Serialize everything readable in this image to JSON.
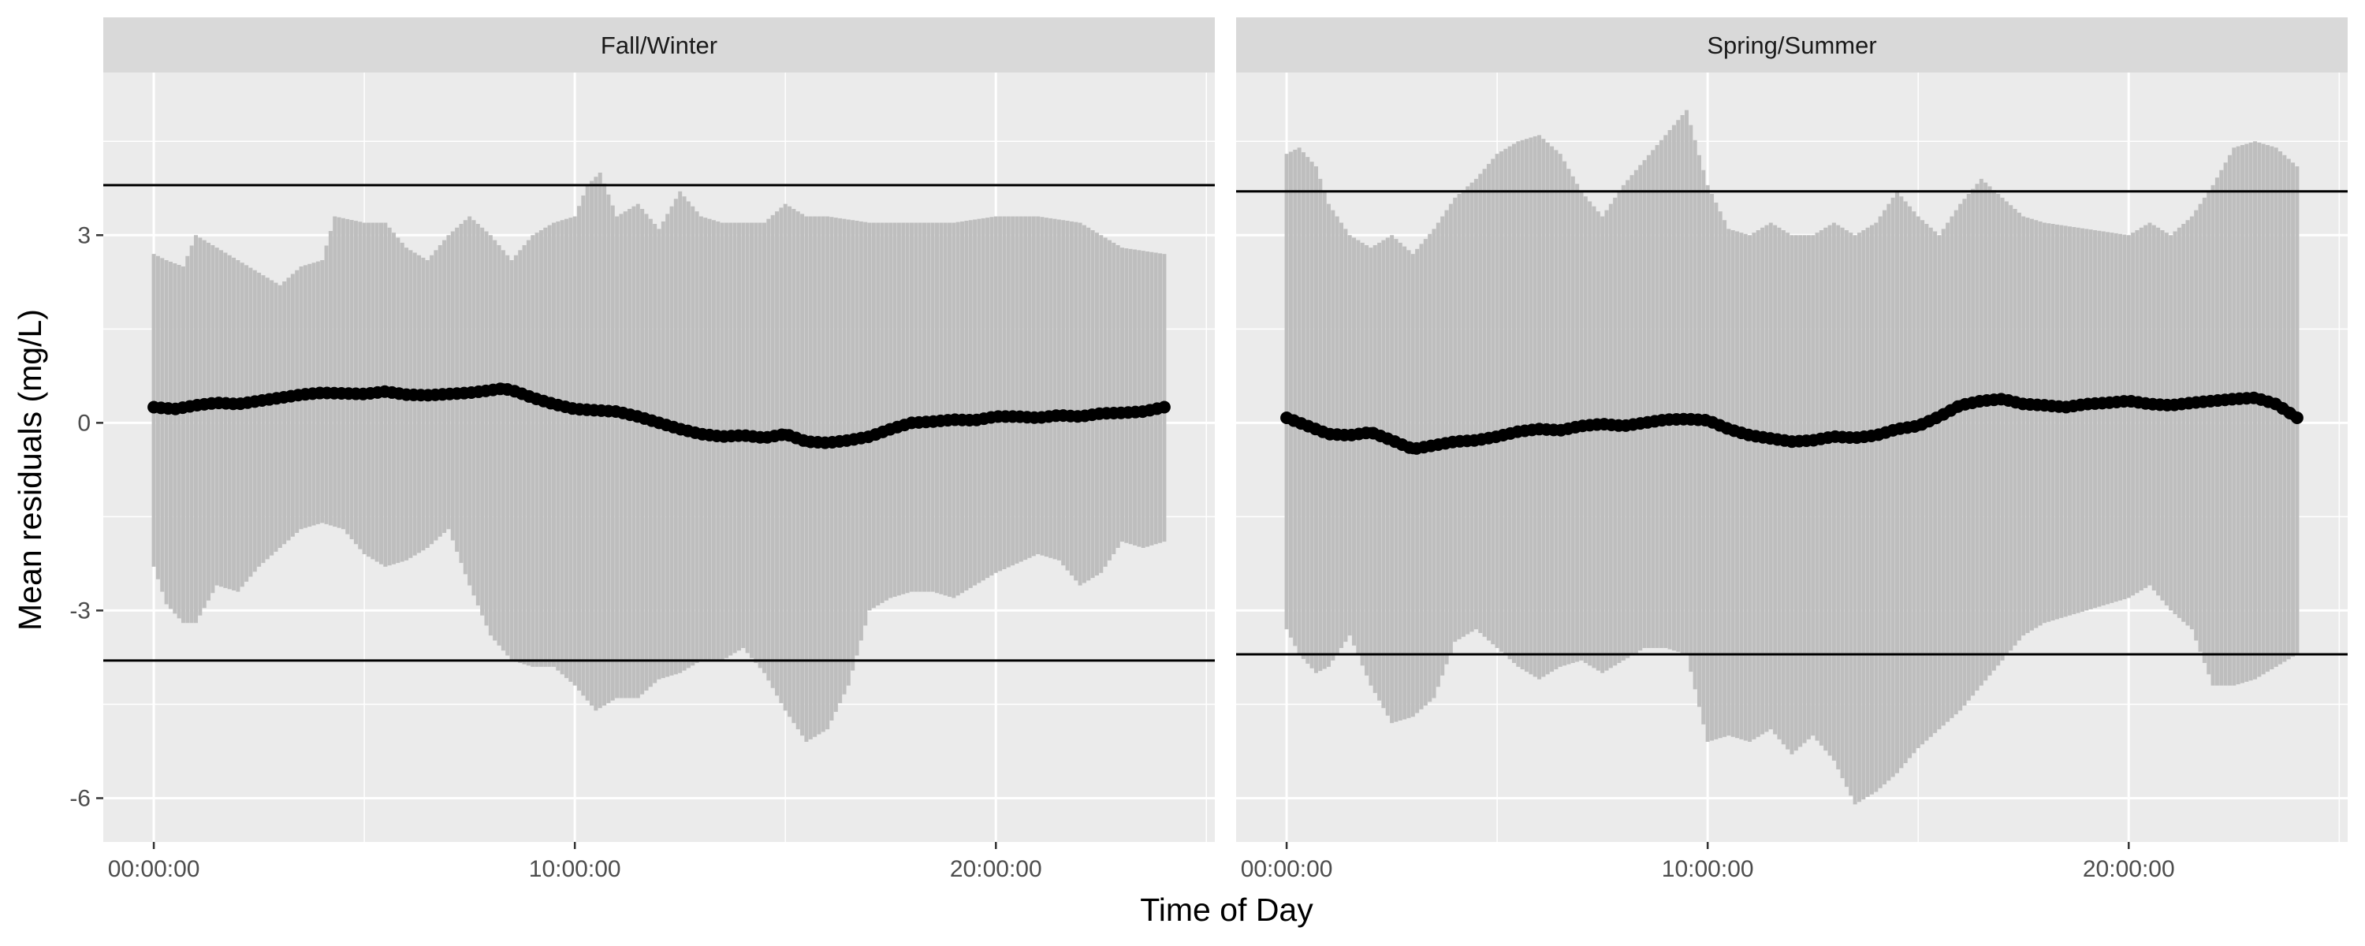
{
  "chart_data": {
    "type": "line",
    "xlabel": "Time of Day",
    "ylabel": "Mean residuals (mg/L)",
    "x_unit": "hours",
    "xlim": [
      -1.2,
      25.2
    ],
    "ylim": [
      -6.7,
      5.6
    ],
    "x_ticks": [
      0,
      10,
      20
    ],
    "x_tick_labels": [
      "00:00:00",
      "10:00:00",
      "20:00:00"
    ],
    "y_ticks": [
      -6,
      -3,
      0,
      3
    ],
    "y_tick_labels": [
      "-6",
      "-3",
      "0",
      "3"
    ],
    "grid": true,
    "legend": "none",
    "colors": {
      "panel_bg": "#ebebeb",
      "strip_bg": "#d9d9d9",
      "grid": "#ffffff",
      "band": "#bebebe",
      "line": "#000000"
    },
    "panels": [
      {
        "title": "Fall/Winter",
        "reference_lines": [
          3.8,
          -3.8
        ],
        "band_upper": [
          [
            0,
            2.7
          ],
          [
            0.3,
            2.6
          ],
          [
            0.7,
            2.5
          ],
          [
            1,
            3.0
          ],
          [
            1.5,
            2.8
          ],
          [
            2,
            2.6
          ],
          [
            2.5,
            2.4
          ],
          [
            3,
            2.2
          ],
          [
            3.5,
            2.5
          ],
          [
            4,
            2.6
          ],
          [
            4.3,
            3.3
          ],
          [
            5,
            3.2
          ],
          [
            5.5,
            3.2
          ],
          [
            6,
            2.8
          ],
          [
            6.5,
            2.6
          ],
          [
            7,
            3.0
          ],
          [
            7.5,
            3.3
          ],
          [
            8,
            3.0
          ],
          [
            8.5,
            2.6
          ],
          [
            9,
            3.0
          ],
          [
            9.5,
            3.2
          ],
          [
            10,
            3.3
          ],
          [
            10.3,
            3.8
          ],
          [
            10.6,
            4.0
          ],
          [
            11,
            3.3
          ],
          [
            11.5,
            3.5
          ],
          [
            12,
            3.1
          ],
          [
            12.5,
            3.7
          ],
          [
            13,
            3.3
          ],
          [
            13.5,
            3.2
          ],
          [
            14,
            3.2
          ],
          [
            14.5,
            3.2
          ],
          [
            15,
            3.5
          ],
          [
            15.5,
            3.3
          ],
          [
            16,
            3.3
          ],
          [
            17,
            3.2
          ],
          [
            18,
            3.2
          ],
          [
            19,
            3.2
          ],
          [
            20,
            3.3
          ],
          [
            21,
            3.3
          ],
          [
            22,
            3.2
          ],
          [
            23,
            2.8
          ],
          [
            24,
            2.7
          ]
        ],
        "band_lower": [
          [
            0,
            -2.3
          ],
          [
            0.3,
            -2.9
          ],
          [
            0.7,
            -3.2
          ],
          [
            1,
            -3.2
          ],
          [
            1.5,
            -2.6
          ],
          [
            2,
            -2.7
          ],
          [
            2.5,
            -2.3
          ],
          [
            3,
            -2.0
          ],
          [
            3.5,
            -1.7
          ],
          [
            4,
            -1.6
          ],
          [
            4.5,
            -1.7
          ],
          [
            5,
            -2.1
          ],
          [
            5.5,
            -2.3
          ],
          [
            6,
            -2.2
          ],
          [
            6.5,
            -2.0
          ],
          [
            7,
            -1.7
          ],
          [
            7.5,
            -2.6
          ],
          [
            8,
            -3.4
          ],
          [
            8.5,
            -3.8
          ],
          [
            9,
            -3.9
          ],
          [
            9.5,
            -3.9
          ],
          [
            10,
            -4.2
          ],
          [
            10.5,
            -4.6
          ],
          [
            11,
            -4.4
          ],
          [
            11.5,
            -4.4
          ],
          [
            12,
            -4.1
          ],
          [
            12.5,
            -4.0
          ],
          [
            13,
            -3.8
          ],
          [
            13.5,
            -3.8
          ],
          [
            14,
            -3.6
          ],
          [
            14.5,
            -4.0
          ],
          [
            15,
            -4.6
          ],
          [
            15.5,
            -5.1
          ],
          [
            16,
            -4.9
          ],
          [
            16.5,
            -4.2
          ],
          [
            17,
            -3.0
          ],
          [
            17.5,
            -2.8
          ],
          [
            18,
            -2.7
          ],
          [
            18.5,
            -2.7
          ],
          [
            19,
            -2.8
          ],
          [
            19.5,
            -2.6
          ],
          [
            20,
            -2.4
          ],
          [
            21,
            -2.1
          ],
          [
            21.5,
            -2.2
          ],
          [
            22,
            -2.6
          ],
          [
            22.5,
            -2.4
          ],
          [
            23,
            -1.9
          ],
          [
            23.5,
            -2.0
          ],
          [
            24,
            -1.9
          ]
        ],
        "mean_line": [
          [
            0,
            0.25
          ],
          [
            0.5,
            0.22
          ],
          [
            1,
            0.28
          ],
          [
            1.5,
            0.32
          ],
          [
            2,
            0.3
          ],
          [
            2.5,
            0.35
          ],
          [
            3,
            0.4
          ],
          [
            3.5,
            0.45
          ],
          [
            4,
            0.48
          ],
          [
            4.5,
            0.47
          ],
          [
            5,
            0.46
          ],
          [
            5.5,
            0.5
          ],
          [
            6,
            0.45
          ],
          [
            6.5,
            0.44
          ],
          [
            7,
            0.46
          ],
          [
            7.5,
            0.48
          ],
          [
            8,
            0.52
          ],
          [
            8.3,
            0.55
          ],
          [
            8.6,
            0.5
          ],
          [
            9,
            0.4
          ],
          [
            9.5,
            0.3
          ],
          [
            10,
            0.22
          ],
          [
            10.5,
            0.2
          ],
          [
            11,
            0.18
          ],
          [
            11.5,
            0.1
          ],
          [
            12,
            0.0
          ],
          [
            12.5,
            -0.1
          ],
          [
            13,
            -0.18
          ],
          [
            13.5,
            -0.22
          ],
          [
            14,
            -0.2
          ],
          [
            14.5,
            -0.24
          ],
          [
            15,
            -0.18
          ],
          [
            15.5,
            -0.3
          ],
          [
            16,
            -0.32
          ],
          [
            16.5,
            -0.28
          ],
          [
            17,
            -0.22
          ],
          [
            17.5,
            -0.1
          ],
          [
            18,
            0.0
          ],
          [
            18.5,
            0.02
          ],
          [
            19,
            0.05
          ],
          [
            19.5,
            0.04
          ],
          [
            20,
            0.1
          ],
          [
            20.5,
            0.1
          ],
          [
            21,
            0.08
          ],
          [
            21.5,
            0.12
          ],
          [
            22,
            0.1
          ],
          [
            22.5,
            0.15
          ],
          [
            23,
            0.16
          ],
          [
            23.5,
            0.18
          ],
          [
            24,
            0.25
          ]
        ]
      },
      {
        "title": "Spring/Summer",
        "reference_lines": [
          3.7,
          -3.7
        ],
        "band_upper": [
          [
            0,
            4.3
          ],
          [
            0.3,
            4.4
          ],
          [
            0.7,
            4.1
          ],
          [
            1,
            3.5
          ],
          [
            1.5,
            3.0
          ],
          [
            2,
            2.8
          ],
          [
            2.5,
            3.0
          ],
          [
            3,
            2.7
          ],
          [
            3.5,
            3.1
          ],
          [
            4,
            3.6
          ],
          [
            4.5,
            3.9
          ],
          [
            5,
            4.3
          ],
          [
            5.5,
            4.5
          ],
          [
            6,
            4.6
          ],
          [
            6.5,
            4.3
          ],
          [
            7,
            3.7
          ],
          [
            7.5,
            3.3
          ],
          [
            8,
            3.8
          ],
          [
            8.5,
            4.2
          ],
          [
            9,
            4.6
          ],
          [
            9.5,
            5.0
          ],
          [
            10,
            3.8
          ],
          [
            10.5,
            3.1
          ],
          [
            11,
            3.0
          ],
          [
            11.5,
            3.2
          ],
          [
            12,
            3.0
          ],
          [
            12.5,
            3.0
          ],
          [
            13,
            3.2
          ],
          [
            13.5,
            3.0
          ],
          [
            14,
            3.2
          ],
          [
            14.5,
            3.7
          ],
          [
            15,
            3.3
          ],
          [
            15.5,
            3.0
          ],
          [
            16,
            3.5
          ],
          [
            16.5,
            3.9
          ],
          [
            17,
            3.6
          ],
          [
            17.5,
            3.3
          ],
          [
            18,
            3.2
          ],
          [
            19,
            3.1
          ],
          [
            20,
            3.0
          ],
          [
            20.5,
            3.2
          ],
          [
            21,
            3.0
          ],
          [
            21.5,
            3.3
          ],
          [
            22,
            3.8
          ],
          [
            22.5,
            4.4
          ],
          [
            23,
            4.5
          ],
          [
            23.5,
            4.4
          ],
          [
            24,
            4.1
          ]
        ],
        "band_lower": [
          [
            0,
            -3.3
          ],
          [
            0.3,
            -3.7
          ],
          [
            0.7,
            -4.0
          ],
          [
            1,
            -3.9
          ],
          [
            1.5,
            -3.4
          ],
          [
            2,
            -4.2
          ],
          [
            2.5,
            -4.8
          ],
          [
            3,
            -4.7
          ],
          [
            3.5,
            -4.4
          ],
          [
            4,
            -3.5
          ],
          [
            4.5,
            -3.3
          ],
          [
            5,
            -3.6
          ],
          [
            5.5,
            -3.9
          ],
          [
            6,
            -4.1
          ],
          [
            6.5,
            -3.9
          ],
          [
            7,
            -3.8
          ],
          [
            7.5,
            -4.0
          ],
          [
            8,
            -3.8
          ],
          [
            8.5,
            -3.6
          ],
          [
            9,
            -3.6
          ],
          [
            9.5,
            -3.7
          ],
          [
            10,
            -5.1
          ],
          [
            10.5,
            -5.0
          ],
          [
            11,
            -5.1
          ],
          [
            11.5,
            -4.9
          ],
          [
            12,
            -5.3
          ],
          [
            12.5,
            -5.0
          ],
          [
            13,
            -5.4
          ],
          [
            13.5,
            -6.1
          ],
          [
            14,
            -5.9
          ],
          [
            14.5,
            -5.6
          ],
          [
            15,
            -5.2
          ],
          [
            15.5,
            -4.9
          ],
          [
            16,
            -4.6
          ],
          [
            16.5,
            -4.2
          ],
          [
            17,
            -3.8
          ],
          [
            17.5,
            -3.4
          ],
          [
            18,
            -3.2
          ],
          [
            19,
            -3.0
          ],
          [
            20,
            -2.8
          ],
          [
            20.5,
            -2.6
          ],
          [
            21,
            -3.0
          ],
          [
            21.5,
            -3.3
          ],
          [
            22,
            -4.2
          ],
          [
            22.5,
            -4.2
          ],
          [
            23,
            -4.1
          ],
          [
            23.5,
            -3.9
          ],
          [
            24,
            -3.7
          ]
        ],
        "mean_line": [
          [
            0,
            0.08
          ],
          [
            0.5,
            -0.05
          ],
          [
            1,
            -0.18
          ],
          [
            1.5,
            -0.2
          ],
          [
            2,
            -0.15
          ],
          [
            2.5,
            -0.28
          ],
          [
            3,
            -0.42
          ],
          [
            3.5,
            -0.36
          ],
          [
            4,
            -0.3
          ],
          [
            4.5,
            -0.28
          ],
          [
            5,
            -0.22
          ],
          [
            5.5,
            -0.14
          ],
          [
            6,
            -0.1
          ],
          [
            6.5,
            -0.12
          ],
          [
            7,
            -0.05
          ],
          [
            7.5,
            -0.02
          ],
          [
            8,
            -0.05
          ],
          [
            8.5,
            0.0
          ],
          [
            9,
            0.05
          ],
          [
            9.5,
            0.06
          ],
          [
            10,
            0.04
          ],
          [
            10.5,
            -0.1
          ],
          [
            11,
            -0.2
          ],
          [
            11.5,
            -0.25
          ],
          [
            12,
            -0.3
          ],
          [
            12.5,
            -0.28
          ],
          [
            13,
            -0.22
          ],
          [
            13.5,
            -0.24
          ],
          [
            14,
            -0.2
          ],
          [
            14.5,
            -0.1
          ],
          [
            15,
            -0.05
          ],
          [
            15.5,
            0.1
          ],
          [
            16,
            0.28
          ],
          [
            16.5,
            0.35
          ],
          [
            17,
            0.38
          ],
          [
            17.5,
            0.3
          ],
          [
            18,
            0.28
          ],
          [
            18.5,
            0.25
          ],
          [
            19,
            0.3
          ],
          [
            19.5,
            0.32
          ],
          [
            20,
            0.35
          ],
          [
            20.5,
            0.3
          ],
          [
            21,
            0.28
          ],
          [
            21.5,
            0.32
          ],
          [
            22,
            0.35
          ],
          [
            22.5,
            0.38
          ],
          [
            23,
            0.4
          ],
          [
            23.5,
            0.3
          ],
          [
            24,
            0.08
          ]
        ]
      }
    ]
  }
}
